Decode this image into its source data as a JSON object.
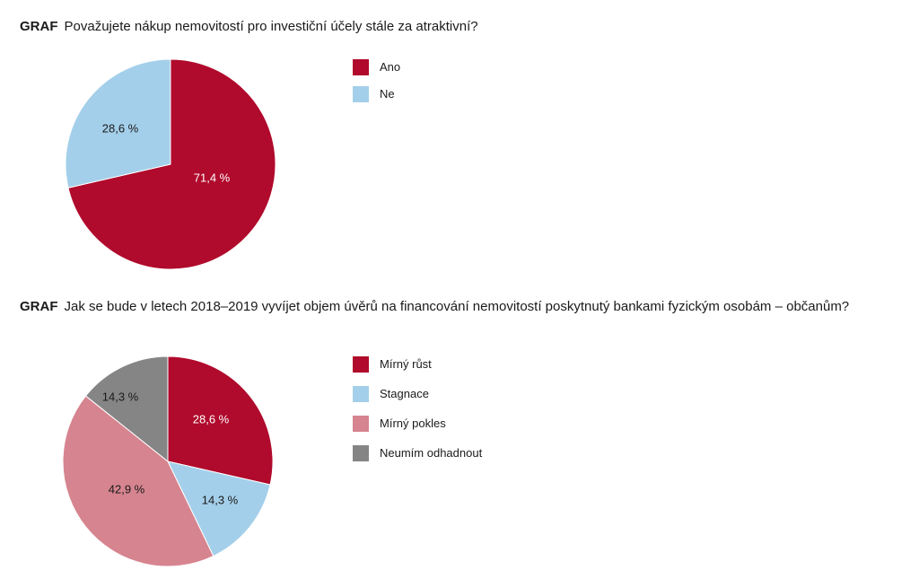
{
  "chart_data": [
    {
      "type": "pie",
      "title_prefix": "GRAF",
      "title": "Považujete nákup nemovitostí pro investiční účely stále za atraktivní?",
      "slices": [
        {
          "name": "Ano",
          "value": 71.4,
          "label": "71,4 %",
          "color": "#b00a2c"
        },
        {
          "name": "Ne",
          "value": 28.6,
          "label": "28,6 %",
          "color": "#a4cfea"
        }
      ],
      "legend_position": "right"
    },
    {
      "type": "pie",
      "title_prefix": "GRAF",
      "title": "Jak se bude v letech 2018–2019 vyvíjet objem úvěrů na financování nemovitostí poskytnutý bankami fyzickým osobám – občanům?",
      "slices": [
        {
          "name": "Mírný růst",
          "value": 28.6,
          "label": "28,6 %",
          "color": "#b00a2c"
        },
        {
          "name": "Stagnace",
          "value": 14.3,
          "label": "14,3 %",
          "color": "#a4cfea"
        },
        {
          "name": "Mírný pokles",
          "value": 42.9,
          "label": "42,9 %",
          "color": "#d6848f"
        },
        {
          "name": "Neumím odhadnout",
          "value": 14.3,
          "label": "14,3 %",
          "color": "#858585"
        }
      ],
      "legend_position": "right"
    }
  ]
}
